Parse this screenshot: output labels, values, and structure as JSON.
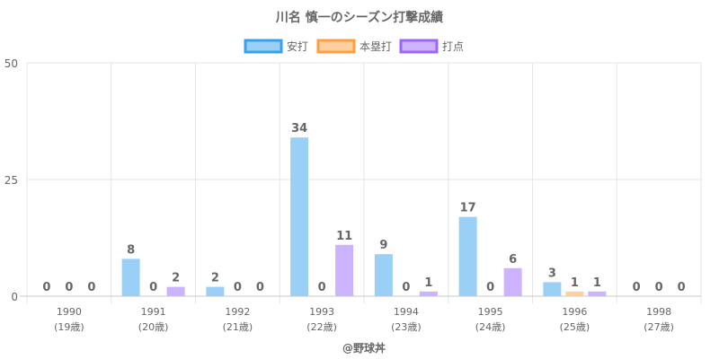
{
  "chart_data": {
    "type": "bar",
    "title": "川名 慎一のシーズン打撃成績",
    "categories": [
      "1990",
      "1991",
      "1992",
      "1993",
      "1994",
      "1995",
      "1996",
      "1998"
    ],
    "category_sublabels": [
      "(19歳)",
      "(20歳)",
      "(21歳)",
      "(22歳)",
      "(23歳)",
      "(24歳)",
      "(25歳)",
      "(27歳)"
    ],
    "series": [
      {
        "name": "安打",
        "values": [
          0,
          8,
          2,
          34,
          9,
          17,
          3,
          0
        ],
        "color": "#9ad0f5",
        "border": "#36a2eb"
      },
      {
        "name": "本塁打",
        "values": [
          0,
          0,
          0,
          0,
          0,
          0,
          1,
          0
        ],
        "color": "#ffcf9f",
        "border": "#ff9f40"
      },
      {
        "name": "打点",
        "values": [
          0,
          2,
          0,
          11,
          1,
          6,
          1,
          0
        ],
        "color": "#ccb2ff",
        "border": "#9966ff"
      }
    ],
    "yticks": [
      "50",
      "25",
      "0"
    ],
    "ylim": [
      0,
      50
    ],
    "grid": true,
    "legend": "top-center",
    "credit": "@野球丼"
  }
}
